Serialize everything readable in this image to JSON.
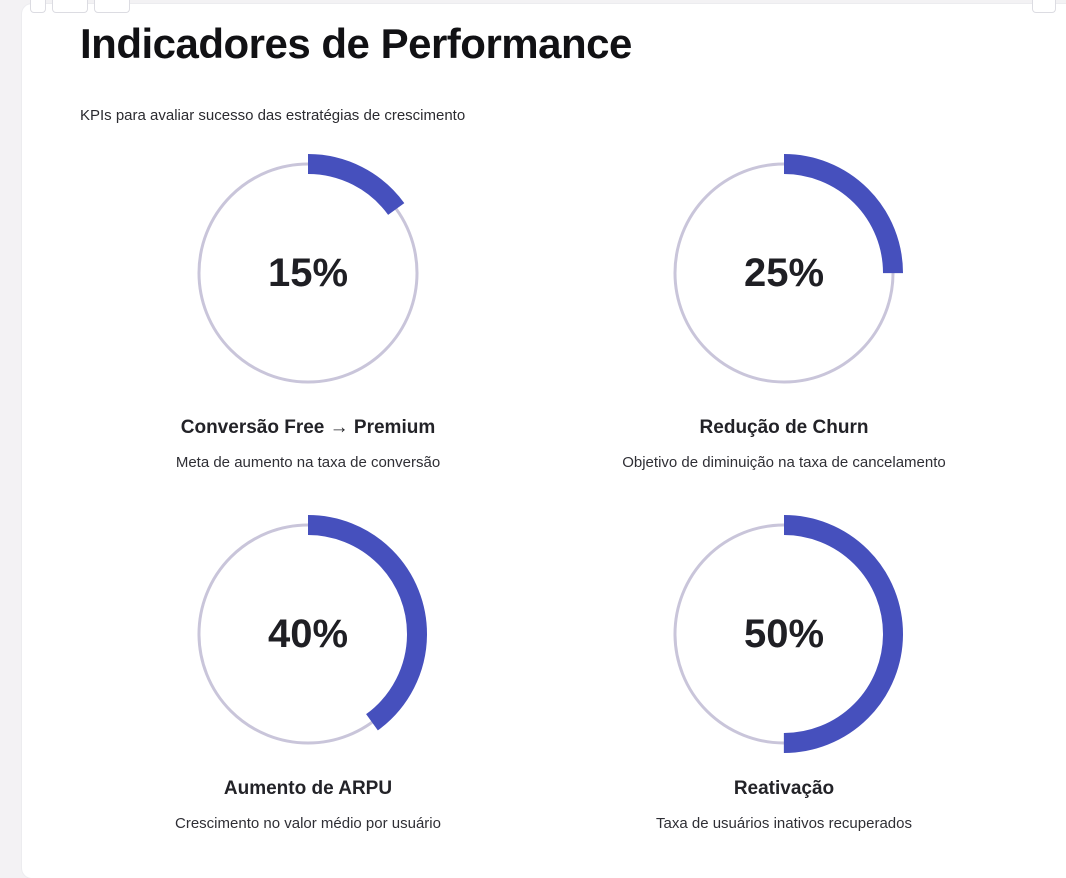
{
  "header": {
    "title": "Indicadores de Performance",
    "subtitle": "KPIs para avaliar sucesso das estratégias de crescimento"
  },
  "colors": {
    "progress": "#4650bd",
    "track": "#c9c5da",
    "background": "#ffffff"
  },
  "kpis": [
    {
      "value_label": "15%",
      "progress": 0.15,
      "name": "Conversão Free → Premium",
      "description": "Meta de aumento na taxa de conversão"
    },
    {
      "value_label": "25%",
      "progress": 0.25,
      "name": "Redução de Churn",
      "description": "Objetivo de diminuição na taxa de cancelamento"
    },
    {
      "value_label": "40%",
      "progress": 0.4,
      "name": "Aumento de ARPU",
      "description": "Crescimento no valor médio por usuário"
    },
    {
      "value_label": "50%",
      "progress": 0.5,
      "name": "Reativação",
      "description": "Taxa de usuários inativos recuperados"
    }
  ]
}
